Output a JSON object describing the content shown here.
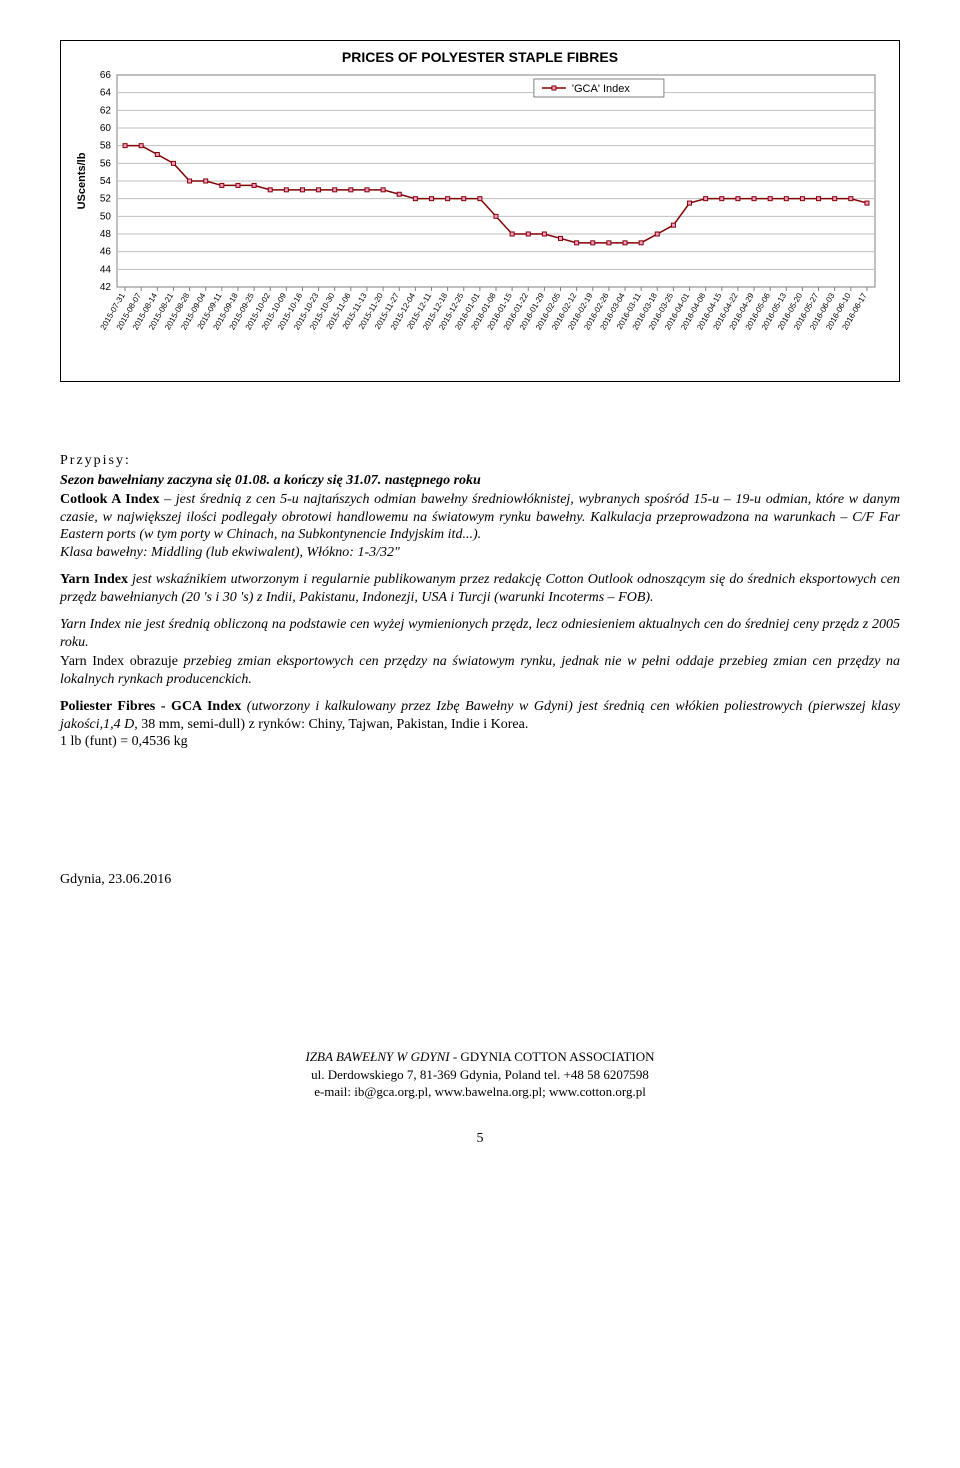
{
  "chart": {
    "title": "PRICES OF POLYESTER STAPLE FIBRES",
    "legend_label": "'GCA' Index",
    "y_label": "UScents/lb",
    "ylim": [
      42,
      66
    ],
    "ytick_step": 2,
    "grid_color": "#bfbfbf",
    "border_color": "#808080",
    "y_font_size": 10,
    "x_font_size": 8,
    "line_color": "#800000",
    "marker_border": "#800000",
    "marker_fill": "#ff99cc",
    "marker_size": 4,
    "background_color": "#ffffff",
    "x_categories": [
      "2015-07-31",
      "2015-08-07",
      "2015-08-14",
      "2015-08-21",
      "2015-08-28",
      "2015-09-04",
      "2015-09-11",
      "2015-09-18",
      "2015-09-25",
      "2015-10-02",
      "2015-10-09",
      "2015-10-16",
      "2015-10-23",
      "2015-10-30",
      "2015-11-06",
      "2015-11-13",
      "2015-11-20",
      "2015-11-27",
      "2015-12-04",
      "2015-12-11",
      "2015-12-18",
      "2015-12-25",
      "2016-01-01",
      "2016-01-08",
      "2016-01-15",
      "2016-01-22",
      "2016-01-29",
      "2016-02-05",
      "2016-02-12",
      "2016-02-19",
      "2016-02-26",
      "2016-03-04",
      "2016-03-11",
      "2016-03-18",
      "2016-03-25",
      "2016-04-01",
      "2016-04-08",
      "2016-04-15",
      "2016-04-22",
      "2016-04-29",
      "2016-05-06",
      "2016-05-13",
      "2016-05-20",
      "2016-05-27",
      "2016-06-03",
      "2016-06-10",
      "2016-06-17"
    ],
    "values": [
      58,
      58,
      57,
      56,
      54,
      54,
      53.5,
      53.5,
      53.5,
      53,
      53,
      53,
      53,
      53,
      53,
      53,
      53,
      52.5,
      52,
      52,
      52,
      52,
      52,
      50,
      48,
      48,
      48,
      47.5,
      47,
      47,
      47,
      47,
      47,
      48,
      49,
      51.5,
      52,
      52,
      52,
      52,
      52,
      52,
      52,
      52,
      52,
      52,
      51.5
    ]
  },
  "body": {
    "przypisy_label": "Przypisy:",
    "sezon_line": "Sezon bawełniany zaczyna się 01.08. a kończy się 31.07. następnego roku",
    "cotlook_para": "Cotlook A Index – jest średnią z cen 5-u najtańszych odmian bawełny średniowłóknistej, wybranych spośród 15-u – 19-u odmian, które w danym czasie, w największej ilości podlegały obrotowi handlowemu na światowym rynku bawełny. Kalkulacja przeprowadzona na warunkach – C/F Far Eastern ports (w tym porty w Chinach, na Subkontynencie Indyjskim itd...).",
    "klasa_line": "Klasa bawełny: Middling (lub ekwiwalent),      Włókno: 1-3/32\"",
    "yarn_lead": "Yarn Index",
    "yarn_rest_1": " jest wskaźnikiem utworzonym i regularnie publikowanym przez redakcję Cotton Outlook odnoszącym się do średnich eksportowych cen przędz bawełnianych (20 's i 30 's) z Indii, Pakistanu, Indonezji, USA i Turcji (warunki Incoterms – FOB).",
    "yarn_para2": "Yarn Index nie jest średnią obliczoną na podstawie cen wyżej wymienionych przędz, lecz odniesieniem aktualnych cen do średniej ceny przędz z 2005 roku.",
    "yarn_lead3": "Yarn Index obrazuje ",
    "yarn_rest3": "przebieg zmian eksportowych cen przędzy na światowym rynku, jednak nie w pełni oddaje przebieg zmian cen przędzy na lokalnych rynkach producenckich.",
    "poli_lead": "Poliester Fibres - GCA Index ",
    "poli_rest1": "(utworzony i kalkulowany przez Izbę Bawełny w Gdyni) jest średnią cen włókien poliestrowych (pierwszej klasy jakości,1,4 D",
    "poli_plain": ", 38 mm, semi-dull) z rynków:  Chiny, Tajwan, Pakistan, Indie i Korea.",
    "lb_line": "1 lb (funt) = 0,4536 kg",
    "gdynia_date": "Gdynia, 23.06.2016"
  },
  "footer": {
    "l1a": "IZBA BAWEŁNY W GDYNI - ",
    "l1b": "GDYNIA COTTON ASSOCIATION",
    "l2": "ul. Derdowskiego 7, 81-369 Gdynia, Poland  tel. +48 58 6207598",
    "l3": "e-mail: ib@gca.org.pl, www.bawelna.org.pl; www.cotton.org.pl"
  },
  "page_number": "5"
}
